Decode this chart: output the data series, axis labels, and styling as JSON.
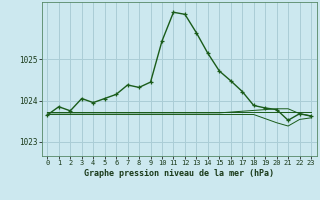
{
  "title": "Graphe pression niveau de la mer (hPa)",
  "background_color": "#cce8ef",
  "grid_color": "#aacdd6",
  "line_color": "#1a5c1a",
  "x_labels": [
    "0",
    "1",
    "2",
    "3",
    "4",
    "5",
    "6",
    "7",
    "8",
    "9",
    "10",
    "11",
    "12",
    "13",
    "14",
    "15",
    "16",
    "17",
    "18",
    "19",
    "20",
    "21",
    "22",
    "23"
  ],
  "y_ticks": [
    1023,
    1024,
    1025
  ],
  "ylim": [
    1022.65,
    1026.4
  ],
  "series_main": [
    1023.65,
    1023.85,
    1023.75,
    1024.05,
    1023.95,
    1024.05,
    1024.15,
    1024.38,
    1024.32,
    1024.45,
    1025.45,
    1026.15,
    1026.1,
    1025.65,
    1025.15,
    1024.72,
    1024.48,
    1024.22,
    1023.88,
    1023.82,
    1023.78,
    1023.52,
    1023.68,
    1023.62
  ],
  "series_upper": [
    1023.73,
    1023.73,
    1023.73,
    1023.73,
    1023.73,
    1023.73,
    1023.73,
    1023.73,
    1023.73,
    1023.73,
    1023.73,
    1023.73,
    1023.73,
    1023.73,
    1023.73,
    1023.73,
    1023.73,
    1023.73,
    1023.73,
    1023.73,
    1023.73,
    1023.73,
    1023.73,
    1023.73
  ],
  "series_ref1": [
    1023.7,
    1023.7,
    1023.7,
    1023.7,
    1023.7,
    1023.7,
    1023.7,
    1023.7,
    1023.7,
    1023.7,
    1023.7,
    1023.7,
    1023.7,
    1023.7,
    1023.7,
    1023.7,
    1023.72,
    1023.74,
    1023.76,
    1023.78,
    1023.8,
    1023.8,
    1023.68,
    1023.63
  ],
  "series_lower": [
    1023.66,
    1023.66,
    1023.66,
    1023.66,
    1023.66,
    1023.66,
    1023.66,
    1023.66,
    1023.66,
    1023.66,
    1023.66,
    1023.66,
    1023.66,
    1023.66,
    1023.66,
    1023.66,
    1023.66,
    1023.66,
    1023.66,
    1023.56,
    1023.46,
    1023.38,
    1023.54,
    1023.58
  ],
  "figsize": [
    3.2,
    2.0
  ],
  "dpi": 100
}
